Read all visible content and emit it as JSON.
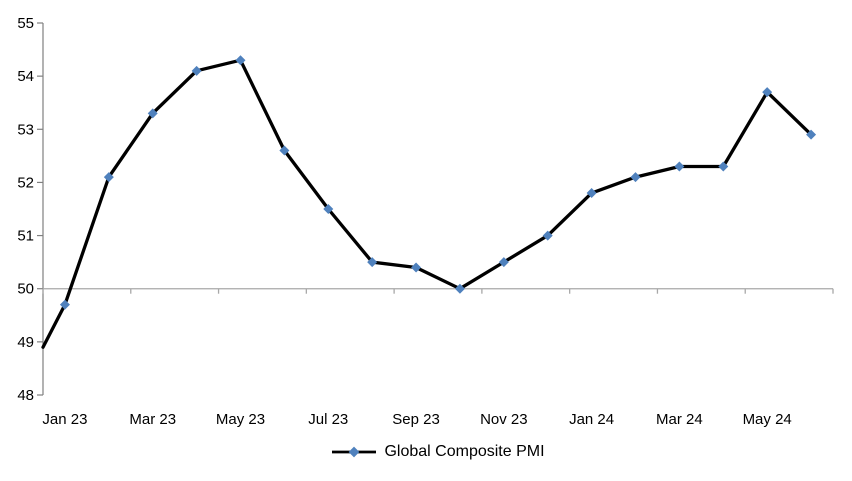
{
  "page": {
    "background_color": "#ffffff"
  },
  "chart_data": {
    "type": "line",
    "title": "",
    "categories": [
      "Jan 23",
      "Feb 23",
      "Mar 23",
      "Apr 23",
      "May 23",
      "Jun 23",
      "Jul 23",
      "Aug 23",
      "Sep 23",
      "Oct 23",
      "Nov 23",
      "Dec 23",
      "Jan 24",
      "Feb 24",
      "Mar 24",
      "Apr 24",
      "May 24",
      "Jun 24"
    ],
    "series": [
      {
        "name": "Global Composite PMI",
        "values": [
          49.7,
          52.1,
          53.3,
          54.1,
          54.3,
          52.6,
          51.5,
          50.5,
          50.4,
          50.0,
          50.5,
          51.0,
          51.8,
          52.1,
          52.3,
          52.3,
          53.7,
          52.9
        ],
        "line_color": "#000000",
        "marker_shape": "diamond",
        "marker_color": "#4F81BD"
      }
    ],
    "lead_in": {
      "note": "line enters the plot from the left value axis (previous point clipped off-plot)",
      "value_at_left_axis": 48.9
    },
    "x_axis": {
      "tick_labels": [
        "Jan 23",
        "Mar 23",
        "May 23",
        "Jul 23",
        "Sep 23",
        "Nov 23",
        "Jan 24",
        "Mar 24",
        "May 24"
      ],
      "label_interval": 2,
      "axis_crosses_at_value": 50,
      "labels_position": "low",
      "line_color": "#A8A8A8",
      "label_color": "#000000"
    },
    "y_axis": {
      "min": 48,
      "max": 55,
      "ticks": [
        48,
        49,
        50,
        51,
        52,
        53,
        54,
        55
      ],
      "line_color": "#808080",
      "label_color": "#000000"
    },
    "grid": false,
    "legend": {
      "position": "bottom",
      "entries": [
        "Global Composite PMI"
      ]
    }
  }
}
